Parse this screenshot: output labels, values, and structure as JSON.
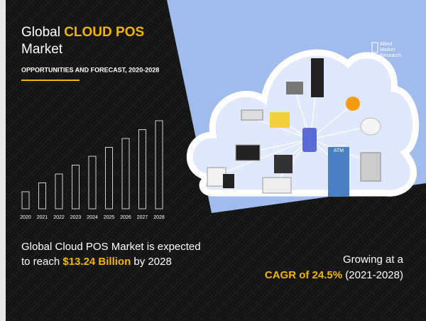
{
  "header": {
    "title_prefix": "Global",
    "title_highlight": "CLOUD POS",
    "title_suffix": "Market",
    "subtitle": "OPPORTUNITIES AND FORECAST, 2020-2028"
  },
  "chart": {
    "years": [
      "2020",
      "2021",
      "2022",
      "2023",
      "2024",
      "2025",
      "2026",
      "2027",
      "2028"
    ]
  },
  "statement": {
    "line1": "Global Cloud POS Market is expected",
    "prefix": "to reach",
    "highlight": "$13.24 Billion",
    "suffix": "by 2028"
  },
  "growth": {
    "line1": "Growing at a",
    "highlight": "CAGR of 24.5%",
    "period": "(2021-2028)"
  },
  "logo": [
    "Allied",
    "Market",
    "Research"
  ],
  "atm_label": "ATM"
}
